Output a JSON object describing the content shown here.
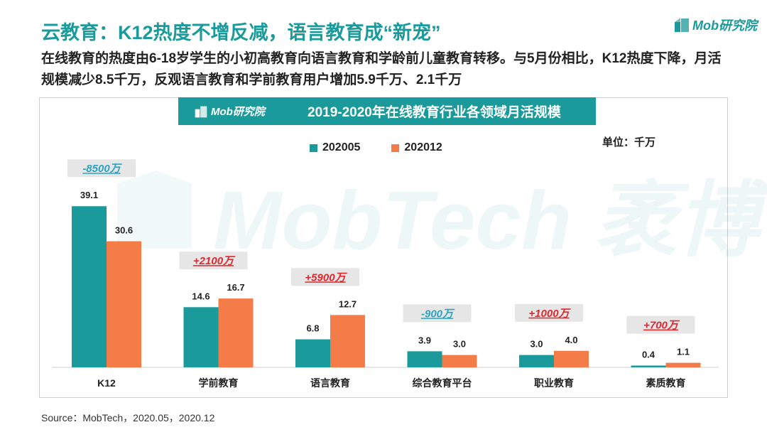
{
  "header": {
    "title": "云教育：K12热度不增反减，语言教育成“新宠”",
    "subtitle": "在线教育的热度由6-18岁学生的小初高教育向语言教育和学龄前儿童教育转移。与5月份相比，K12热度下降，月活规模减少8.5千万，反观语言教育和学前教育用户增加5.9千万、2.1千万",
    "logo_text": "Mob研究院"
  },
  "banner": {
    "logo_text": "Mob研究院",
    "title": "2019-2020年在线教育行业各领域月活规模"
  },
  "watermark": "MobTech 袤博",
  "colors": {
    "teal": "#1a9a9a",
    "orange": "#f47c48",
    "change_red": "#e0282e",
    "change_blue": "#2aa4c2"
  },
  "chart_data": {
    "type": "bar",
    "title": "2019-2020年在线教育行业各领域月活规模",
    "unit": "单位：千万",
    "categories": [
      "K12",
      "学前教育",
      "语言教育",
      "综合教育平台",
      "职业教育",
      "素质教育"
    ],
    "series": [
      {
        "name": "202005",
        "color": "#1a9a9a",
        "values": [
          39.1,
          14.6,
          6.8,
          3.9,
          3.0,
          0.4
        ],
        "labels": [
          "39.1",
          "14.6",
          "6.8",
          "3.9",
          "3.0",
          "0.4"
        ]
      },
      {
        "name": "202012",
        "color": "#f47c48",
        "values": [
          30.6,
          16.7,
          12.7,
          3.0,
          4.0,
          1.1
        ],
        "labels": [
          "30.6",
          "16.7",
          "12.7",
          "3.0",
          "4.0",
          "1.1"
        ]
      }
    ],
    "changes": [
      {
        "text": "-8500万",
        "direction": "down"
      },
      {
        "text": "+2100万",
        "direction": "up"
      },
      {
        "text": "+5900万",
        "direction": "up"
      },
      {
        "text": "-900万",
        "direction": "down"
      },
      {
        "text": "+1000万",
        "direction": "up"
      },
      {
        "text": "+700万",
        "direction": "up"
      }
    ],
    "ylim": [
      0,
      40
    ],
    "legend": "top-center",
    "grid": false
  },
  "source": "Source：MobTech，2020.05，2020.12"
}
